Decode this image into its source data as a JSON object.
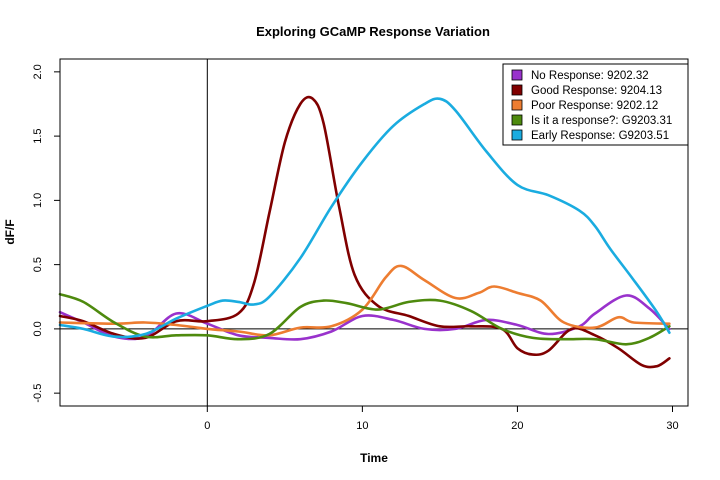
{
  "chart_data": {
    "type": "line",
    "title": "Exploring GCaMP Response Variation",
    "xlabel": "Time",
    "ylabel": "dF/F",
    "xlim": [
      -9.5,
      31
    ],
    "ylim": [
      -0.6,
      2.1
    ],
    "x_ticks": [
      0,
      10,
      20,
      30
    ],
    "x_tick_labels": [
      "0",
      "10",
      "20",
      "30"
    ],
    "y_ticks": [
      -0.5,
      0.0,
      0.5,
      1.0,
      1.5,
      2.0
    ],
    "y_tick_labels": [
      "-0.5",
      "0.0",
      "0.5",
      "1.0",
      "1.5",
      "2.0"
    ],
    "reference_lines": {
      "vertical_x": 0,
      "horizontal_y": 0
    },
    "legend_position": "top-right",
    "grid": false,
    "series": [
      {
        "name": "No Response: 9202.32",
        "color": "#9932CC",
        "points": [
          [
            -9.5,
            0.13
          ],
          [
            -8,
            0.05
          ],
          [
            -6,
            -0.06
          ],
          [
            -4,
            -0.06
          ],
          [
            -2,
            0.12
          ],
          [
            0,
            0.04
          ],
          [
            2,
            -0.05
          ],
          [
            4,
            -0.07
          ],
          [
            6,
            -0.08
          ],
          [
            8,
            -0.02
          ],
          [
            10,
            0.1
          ],
          [
            12,
            0.07
          ],
          [
            14,
            0.0
          ],
          [
            16,
            0.0
          ],
          [
            18,
            0.07
          ],
          [
            20,
            0.03
          ],
          [
            22,
            -0.04
          ],
          [
            24,
            0.02
          ],
          [
            25,
            0.12
          ],
          [
            27,
            0.26
          ],
          [
            28.5,
            0.16
          ],
          [
            29.8,
            0.0
          ]
        ]
      },
      {
        "name": "Good Response: 9204.13",
        "color": "#800000",
        "points": [
          [
            -9.5,
            0.1
          ],
          [
            -8,
            0.06
          ],
          [
            -6,
            -0.04
          ],
          [
            -4,
            -0.07
          ],
          [
            -2,
            0.06
          ],
          [
            0,
            0.06
          ],
          [
            2,
            0.12
          ],
          [
            3,
            0.35
          ],
          [
            4,
            0.9
          ],
          [
            5,
            1.45
          ],
          [
            6,
            1.75
          ],
          [
            6.8,
            1.79
          ],
          [
            7.5,
            1.6
          ],
          [
            8.5,
            0.95
          ],
          [
            9.5,
            0.42
          ],
          [
            11,
            0.18
          ],
          [
            13,
            0.1
          ],
          [
            15,
            0.02
          ],
          [
            17,
            0.02
          ],
          [
            19,
            0.0
          ],
          [
            20,
            -0.15
          ],
          [
            21,
            -0.2
          ],
          [
            22,
            -0.17
          ],
          [
            23.5,
            0.0
          ],
          [
            25,
            -0.05
          ],
          [
            26.5,
            -0.15
          ],
          [
            28,
            -0.28
          ],
          [
            29,
            -0.29
          ],
          [
            29.8,
            -0.23
          ]
        ]
      },
      {
        "name": "Poor Response: 9202.12",
        "color": "#ED7D31",
        "points": [
          [
            -9.5,
            0.05
          ],
          [
            -6,
            0.04
          ],
          [
            -4,
            0.05
          ],
          [
            -2,
            0.03
          ],
          [
            0,
            0.0
          ],
          [
            2,
            -0.02
          ],
          [
            4,
            -0.05
          ],
          [
            6,
            0.01
          ],
          [
            8,
            0.02
          ],
          [
            10,
            0.15
          ],
          [
            11.5,
            0.4
          ],
          [
            12.5,
            0.49
          ],
          [
            14,
            0.38
          ],
          [
            16,
            0.24
          ],
          [
            17.5,
            0.28
          ],
          [
            18.5,
            0.33
          ],
          [
            20,
            0.28
          ],
          [
            21.5,
            0.22
          ],
          [
            23,
            0.05
          ],
          [
            25,
            0.01
          ],
          [
            26.5,
            0.09
          ],
          [
            27.5,
            0.05
          ],
          [
            29.8,
            0.04
          ]
        ]
      },
      {
        "name": "Is it a response?: G9203.31",
        "color": "#4E8A0E",
        "points": [
          [
            -9.5,
            0.27
          ],
          [
            -8,
            0.21
          ],
          [
            -6,
            0.05
          ],
          [
            -4,
            -0.06
          ],
          [
            -2,
            -0.05
          ],
          [
            0,
            -0.05
          ],
          [
            2,
            -0.08
          ],
          [
            4,
            -0.04
          ],
          [
            6,
            0.17
          ],
          [
            7.5,
            0.22
          ],
          [
            9,
            0.2
          ],
          [
            11,
            0.15
          ],
          [
            13,
            0.21
          ],
          [
            15,
            0.22
          ],
          [
            17,
            0.14
          ],
          [
            19,
            0.0
          ],
          [
            21,
            -0.07
          ],
          [
            23,
            -0.08
          ],
          [
            25,
            -0.08
          ],
          [
            27,
            -0.12
          ],
          [
            28.5,
            -0.07
          ],
          [
            29.8,
            0.02
          ]
        ]
      },
      {
        "name": "Early Response: G9203.51",
        "color": "#1AACE0",
        "points": [
          [
            -9.5,
            0.03
          ],
          [
            -8,
            0.0
          ],
          [
            -6,
            -0.06
          ],
          [
            -4,
            -0.04
          ],
          [
            -2,
            0.08
          ],
          [
            0,
            0.18
          ],
          [
            1,
            0.22
          ],
          [
            2,
            0.21
          ],
          [
            3,
            0.19
          ],
          [
            4,
            0.25
          ],
          [
            6,
            0.55
          ],
          [
            8,
            0.95
          ],
          [
            10,
            1.3
          ],
          [
            12,
            1.58
          ],
          [
            14,
            1.75
          ],
          [
            15,
            1.79
          ],
          [
            16,
            1.7
          ],
          [
            18,
            1.38
          ],
          [
            20,
            1.12
          ],
          [
            22,
            1.04
          ],
          [
            24,
            0.92
          ],
          [
            25,
            0.8
          ],
          [
            26,
            0.62
          ],
          [
            27.5,
            0.38
          ],
          [
            29,
            0.13
          ],
          [
            29.8,
            -0.03
          ]
        ]
      }
    ]
  }
}
